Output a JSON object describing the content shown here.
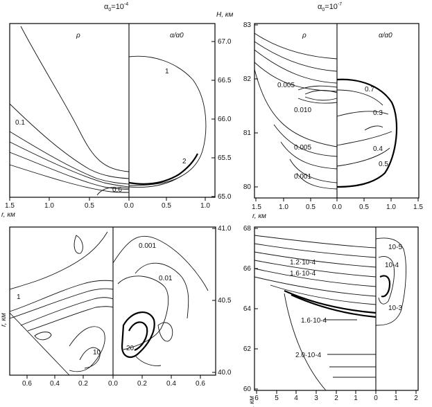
{
  "titles": {
    "left": "α0=10-4",
    "right": "α0=10-7"
  },
  "chart_data": [
    {
      "type": "contour",
      "panel": "top-left",
      "xlabel": "r, км",
      "ylabel": "H, км",
      "xticks_left": [
        "1.5",
        "1.0",
        "0.5",
        "0.0"
      ],
      "xticks_right": [
        "0.5",
        "1.0"
      ],
      "yticks": [
        "67.0",
        "66.5",
        "66.0",
        "65.5",
        "65.0"
      ],
      "xlim": [
        -1.5,
        1.1
      ],
      "ylim": [
        65.0,
        67.2
      ],
      "half_labels": [
        "ρ",
        "α/α0"
      ],
      "contour_labels": [
        "0.1",
        "0.6",
        "1",
        "2"
      ]
    },
    {
      "type": "contour",
      "panel": "top-right",
      "xlabel": "r, км",
      "xticks": [
        "1.5",
        "1.0",
        "0.5",
        "0.0",
        "0.5",
        "1.0",
        "1.5"
      ],
      "yticks": [
        "83",
        "82",
        "81",
        "80"
      ],
      "xlim": [
        -1.5,
        1.5
      ],
      "ylim": [
        79.8,
        83.0
      ],
      "half_labels": [
        "ρ",
        "α/α0"
      ],
      "contour_labels": [
        "0.005",
        "0.010",
        "0.005",
        "0.001",
        "0.7",
        "0.3",
        "0.4",
        "0.5"
      ]
    },
    {
      "type": "contour",
      "panel": "bottom-left",
      "xlabel": "r, км",
      "xticks": [
        "0.6",
        "0.4",
        "0.2",
        "0.0",
        "0.2",
        "0.4",
        "0.6"
      ],
      "yticks": [
        "41.0",
        "40.5",
        "40.0"
      ],
      "xlim": [
        -0.7,
        0.7
      ],
      "ylim": [
        39.98,
        41.0
      ],
      "contour_labels": [
        "1",
        "10",
        "0.001",
        "0.01",
        "20"
      ]
    },
    {
      "type": "contour",
      "panel": "bottom-right",
      "xlabel": "r, км",
      "xticks": [
        "6",
        "5",
        "4",
        "3",
        "2",
        "1",
        "0",
        "1",
        "2"
      ],
      "yticks": [
        "68",
        "66",
        "64",
        "62",
        "60"
      ],
      "xlim": [
        -6,
        2.2
      ],
      "ylim": [
        60,
        68
      ],
      "contour_labels": [
        "1.2·10-4",
        "1.6·10-4",
        "1.6·10-4",
        "2.0·10-4",
        "10-5",
        "10-4",
        "10-3"
      ]
    }
  ]
}
